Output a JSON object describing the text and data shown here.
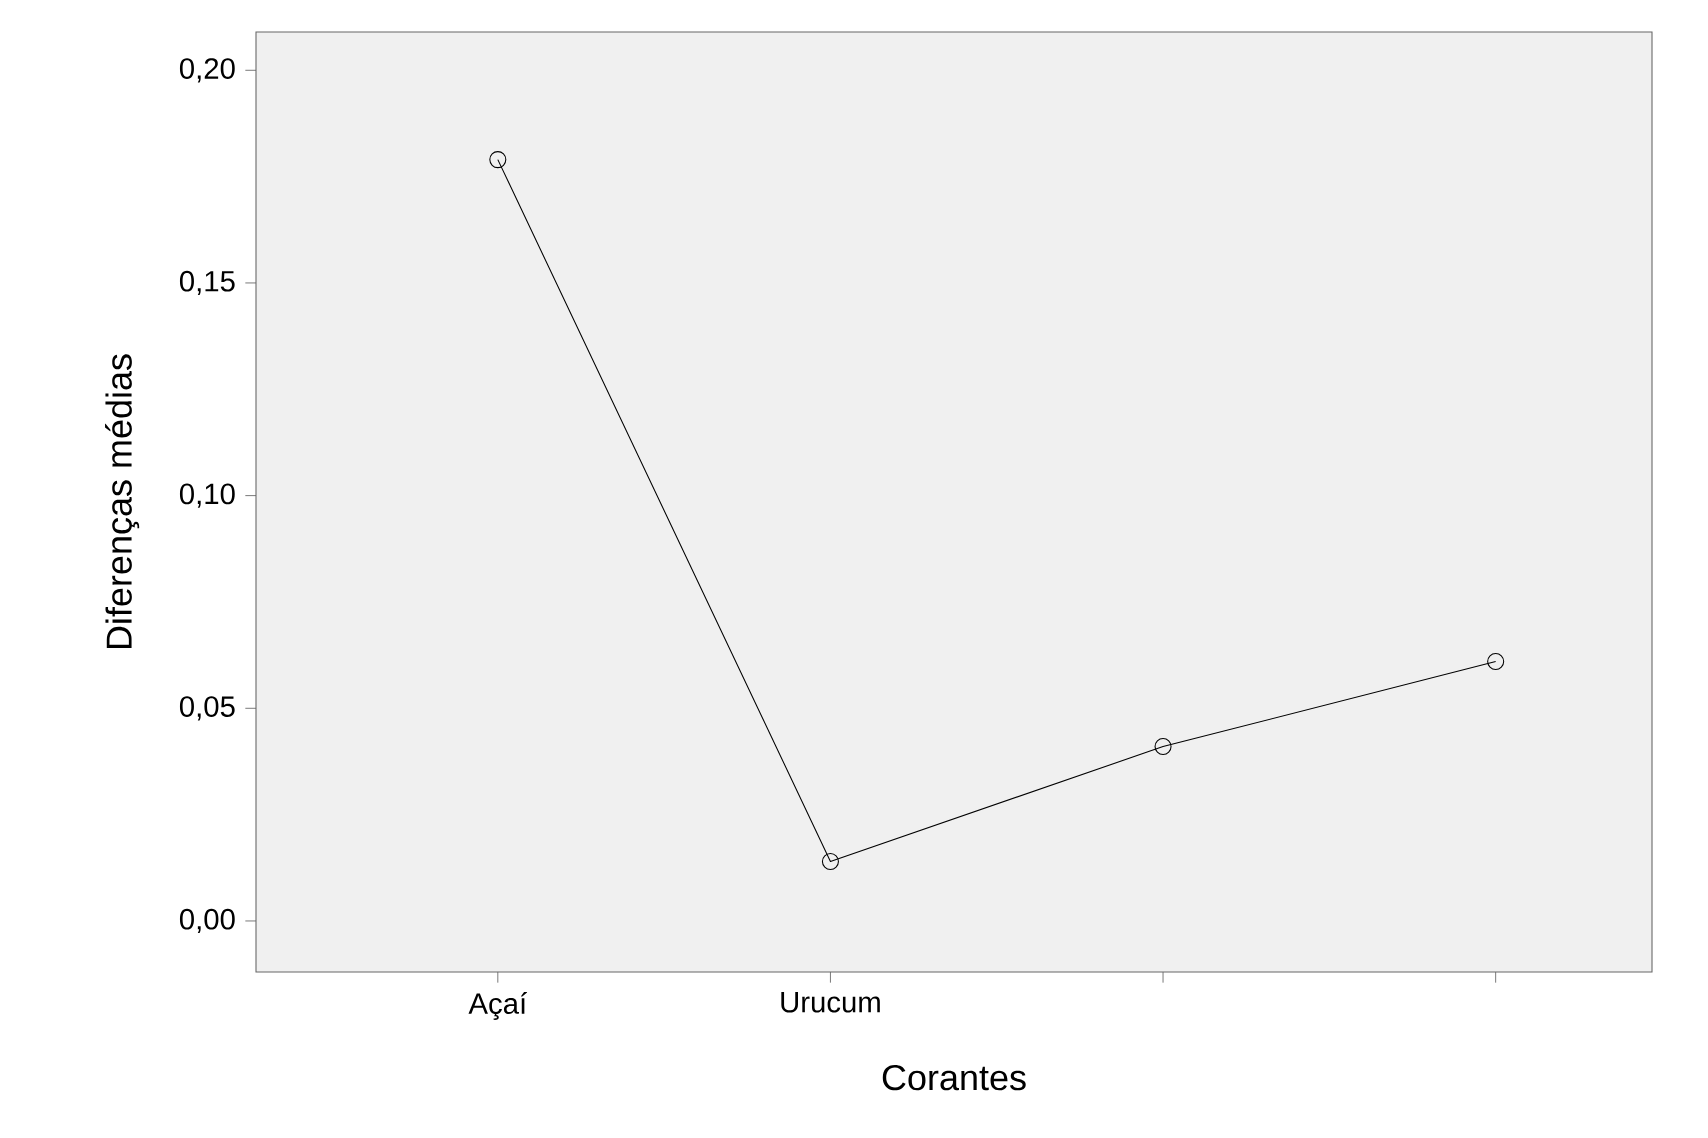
{
  "chart_data": {
    "type": "line",
    "xlabel": "Corantes",
    "ylabel": "Diferenças médias",
    "categories": [
      "Açaí",
      "Urucum",
      null,
      null
    ],
    "values": [
      0.179,
      0.014,
      0.041,
      0.061
    ],
    "color": "#000000",
    "marker": "circle",
    "line_style": "solid",
    "ylim": [
      -0.012,
      0.209
    ],
    "yticks": [
      {
        "value": 0,
        "label": "0,00"
      },
      {
        "value": 0.05,
        "label": "0,05"
      },
      {
        "value": 0.1,
        "label": "0,10"
      },
      {
        "value": 0.15,
        "label": "0,15"
      },
      {
        "value": 0.2,
        "label": "0,20"
      }
    ]
  }
}
